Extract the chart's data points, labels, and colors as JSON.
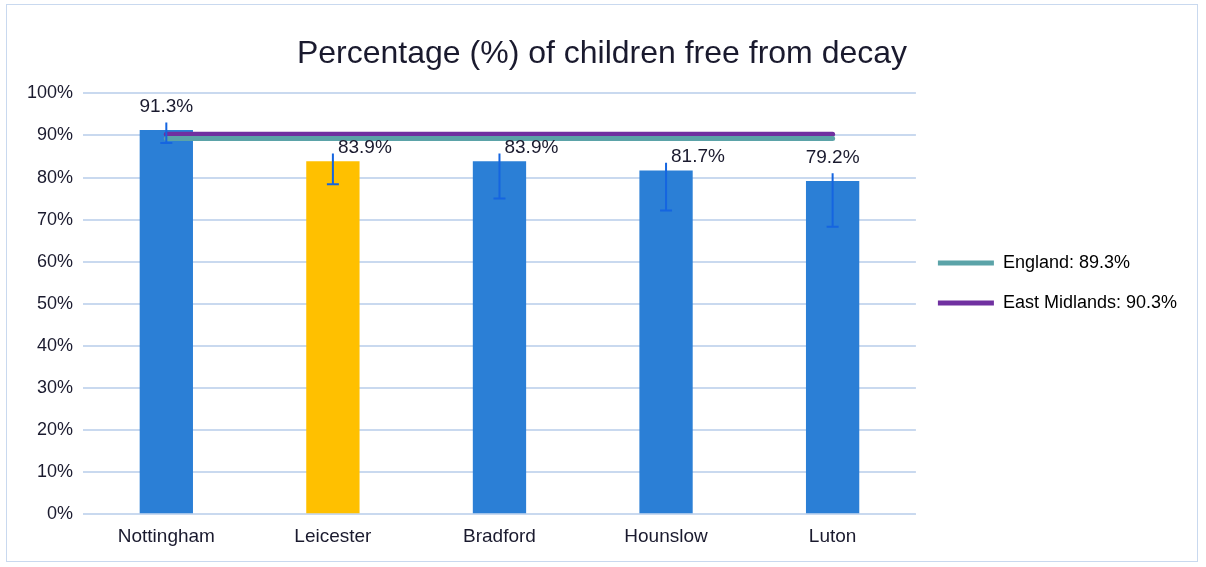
{
  "chart_data": {
    "type": "bar",
    "title": "Percentage (%) of children free from decay",
    "categories": [
      "Nottingham",
      "Leicester",
      "Bradford",
      "Hounslow",
      "Luton"
    ],
    "series": [
      {
        "colors": [
          "#2b7fd6",
          "#ffc000",
          "#2b7fd6",
          "#2b7fd6",
          "#2b7fd6"
        ],
        "values": [
          91.3,
          83.9,
          83.9,
          81.7,
          79.2
        ],
        "errors": [
          [
            88.2,
            93.1
          ],
          [
            78.4,
            85.7
          ],
          [
            75.0,
            85.7
          ],
          [
            72.2,
            83.5
          ],
          [
            68.3,
            81.0
          ]
        ],
        "value_labels": [
          "91.3%",
          "83.9%",
          "83.9%",
          "81.7%",
          "79.2%"
        ]
      },
      {
        "type": "line",
        "name": "England: 89.3%",
        "color": "#5ba3a8",
        "values": [
          89.3,
          89.3,
          89.3,
          89.3,
          89.3
        ]
      },
      {
        "type": "line",
        "name": "East Midlands: 90.3%",
        "color": "#7030a0",
        "values": [
          90.3,
          90.3,
          90.3,
          90.3,
          90.3
        ]
      }
    ],
    "ylim": [
      0,
      100
    ],
    "yticks": [
      {
        "value": 0,
        "label": "0%"
      },
      {
        "value": 10,
        "label": "10%"
      },
      {
        "value": 20,
        "label": "20%"
      },
      {
        "value": 30,
        "label": "30%"
      },
      {
        "value": 40,
        "label": "40%"
      },
      {
        "value": 50,
        "label": "50%"
      },
      {
        "value": 60,
        "label": "60%"
      },
      {
        "value": 70,
        "label": "70%"
      },
      {
        "value": 80,
        "label": "80%"
      },
      {
        "value": 90,
        "label": "90%"
      },
      {
        "value": 100,
        "label": "100%"
      }
    ],
    "grid": "y",
    "legend": "right",
    "marker": "none",
    "line_style": "solid"
  }
}
